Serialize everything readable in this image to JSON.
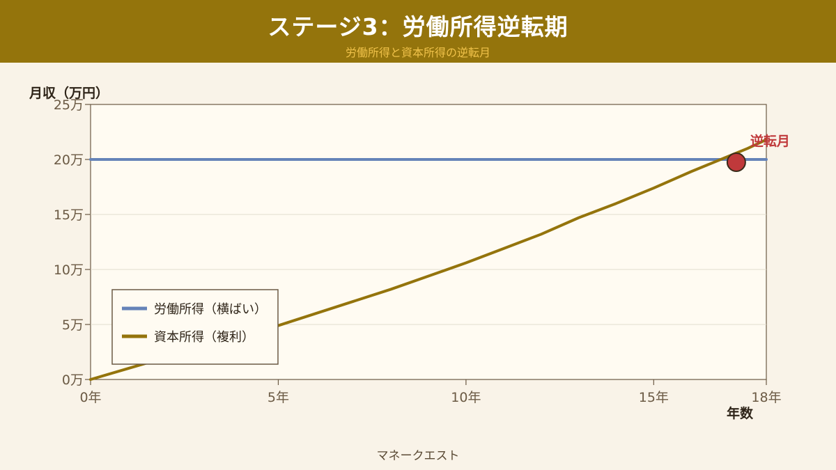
{
  "header": {
    "title": "ステージ3：労働所得逆転期",
    "subtitle": "労働所得と資本所得の逆転月"
  },
  "footer": {
    "credit": "マネークエスト"
  },
  "colors": {
    "header_bg": "#94740c",
    "subtitle": "#f0c24a",
    "labor_line": "#6583b8",
    "capital_line": "#94740c",
    "crossover_marker": "#c0393b",
    "plot_bg": "#fffbf2",
    "axis": "#6b5a44"
  },
  "chart_data": {
    "type": "line",
    "ylabel": "月収（万円）",
    "xlabel": "年数",
    "xlim": [
      0,
      18
    ],
    "ylim": [
      0,
      25
    ],
    "x_ticks": [
      0,
      5,
      10,
      15,
      18
    ],
    "x_tick_labels": [
      "0年",
      "5年",
      "10年",
      "15年",
      "18年"
    ],
    "y_ticks": [
      0,
      5,
      10,
      15,
      20,
      25
    ],
    "y_tick_labels": [
      "0万",
      "5万",
      "10万",
      "15万",
      "20万",
      "25万"
    ],
    "grid": true,
    "legend_position": "bottom-left",
    "series": [
      {
        "name": "労働所得（横ばい）",
        "x": [
          0,
          18
        ],
        "values": [
          20,
          20
        ]
      },
      {
        "name": "資本所得（複利）",
        "x": [
          0,
          1,
          2,
          3,
          4,
          5,
          6,
          7,
          8,
          9,
          10,
          11,
          12,
          13,
          14,
          15,
          16,
          17,
          17.5,
          18
        ],
        "values": [
          0,
          1.0,
          2.0,
          3.0,
          4.0,
          4.9,
          6.0,
          7.1,
          8.2,
          9.4,
          10.6,
          11.9,
          13.2,
          14.7,
          16.0,
          17.4,
          18.9,
          20.3,
          21.0,
          21.8
        ]
      }
    ],
    "annotations": [
      {
        "label": "逆転月",
        "x": 17.2,
        "y": 20.0
      }
    ]
  }
}
